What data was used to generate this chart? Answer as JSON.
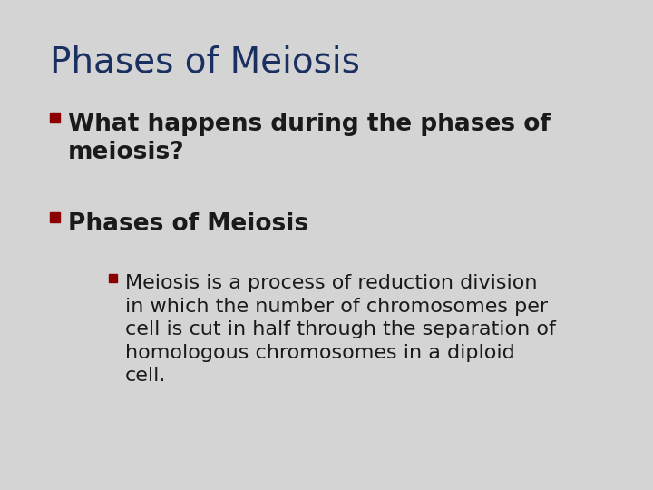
{
  "background_color": "#d4d4d4",
  "title": "Phases of Meiosis",
  "title_color": "#1a3060",
  "title_fontsize": 28,
  "title_fontweight": "normal",
  "bullet_color": "#8b0000",
  "text_color": "#1a1a1a",
  "bullet1_text": "What happens during the phases of\nmeiosis?",
  "bullet1_fontsize": 19,
  "bullet1_fontweight": "bold",
  "bullet2_text": "Phases of Meiosis",
  "bullet2_fontsize": 19,
  "bullet2_fontweight": "bold",
  "sub_bullet_text": "Meiosis is a process of reduction division\nin which the number of chromosomes per\ncell is cut in half through the separation of\nhomologous chromosomes in a diploid\ncell.",
  "sub_bullet_fontsize": 16,
  "sub_bullet_fontweight": "normal",
  "figwidth": 7.2,
  "figheight": 5.4,
  "dpi": 100
}
